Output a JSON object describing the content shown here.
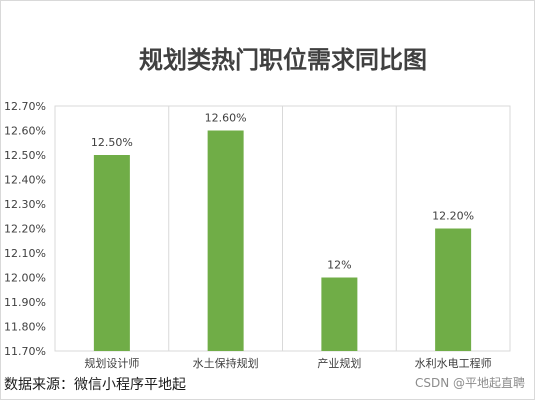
{
  "chart_data": {
    "type": "bar",
    "title": "规划类热门职位需求同比图",
    "categories": [
      "规划设计师",
      "水土保持规划",
      "产业规划",
      "水利水电工程师"
    ],
    "values": [
      12.5,
      12.6,
      12.0,
      12.2
    ],
    "data_labels": [
      "12.50%",
      "12.60%",
      "12%",
      "12.20%"
    ],
    "ylim": [
      11.7,
      12.7
    ],
    "y_ticks": [
      "11.70%",
      "11.80%",
      "11.90%",
      "12.00%",
      "12.10%",
      "12.20%",
      "12.30%",
      "12.40%",
      "12.50%",
      "12.60%",
      "12.70%"
    ],
    "grid": "vertical category separators",
    "bar_color": "#70ad47",
    "xlabel": "",
    "ylabel": ""
  },
  "source_text": "数据来源：微信小程序平地起",
  "watermark_text": "CSDN @平地起直聘"
}
